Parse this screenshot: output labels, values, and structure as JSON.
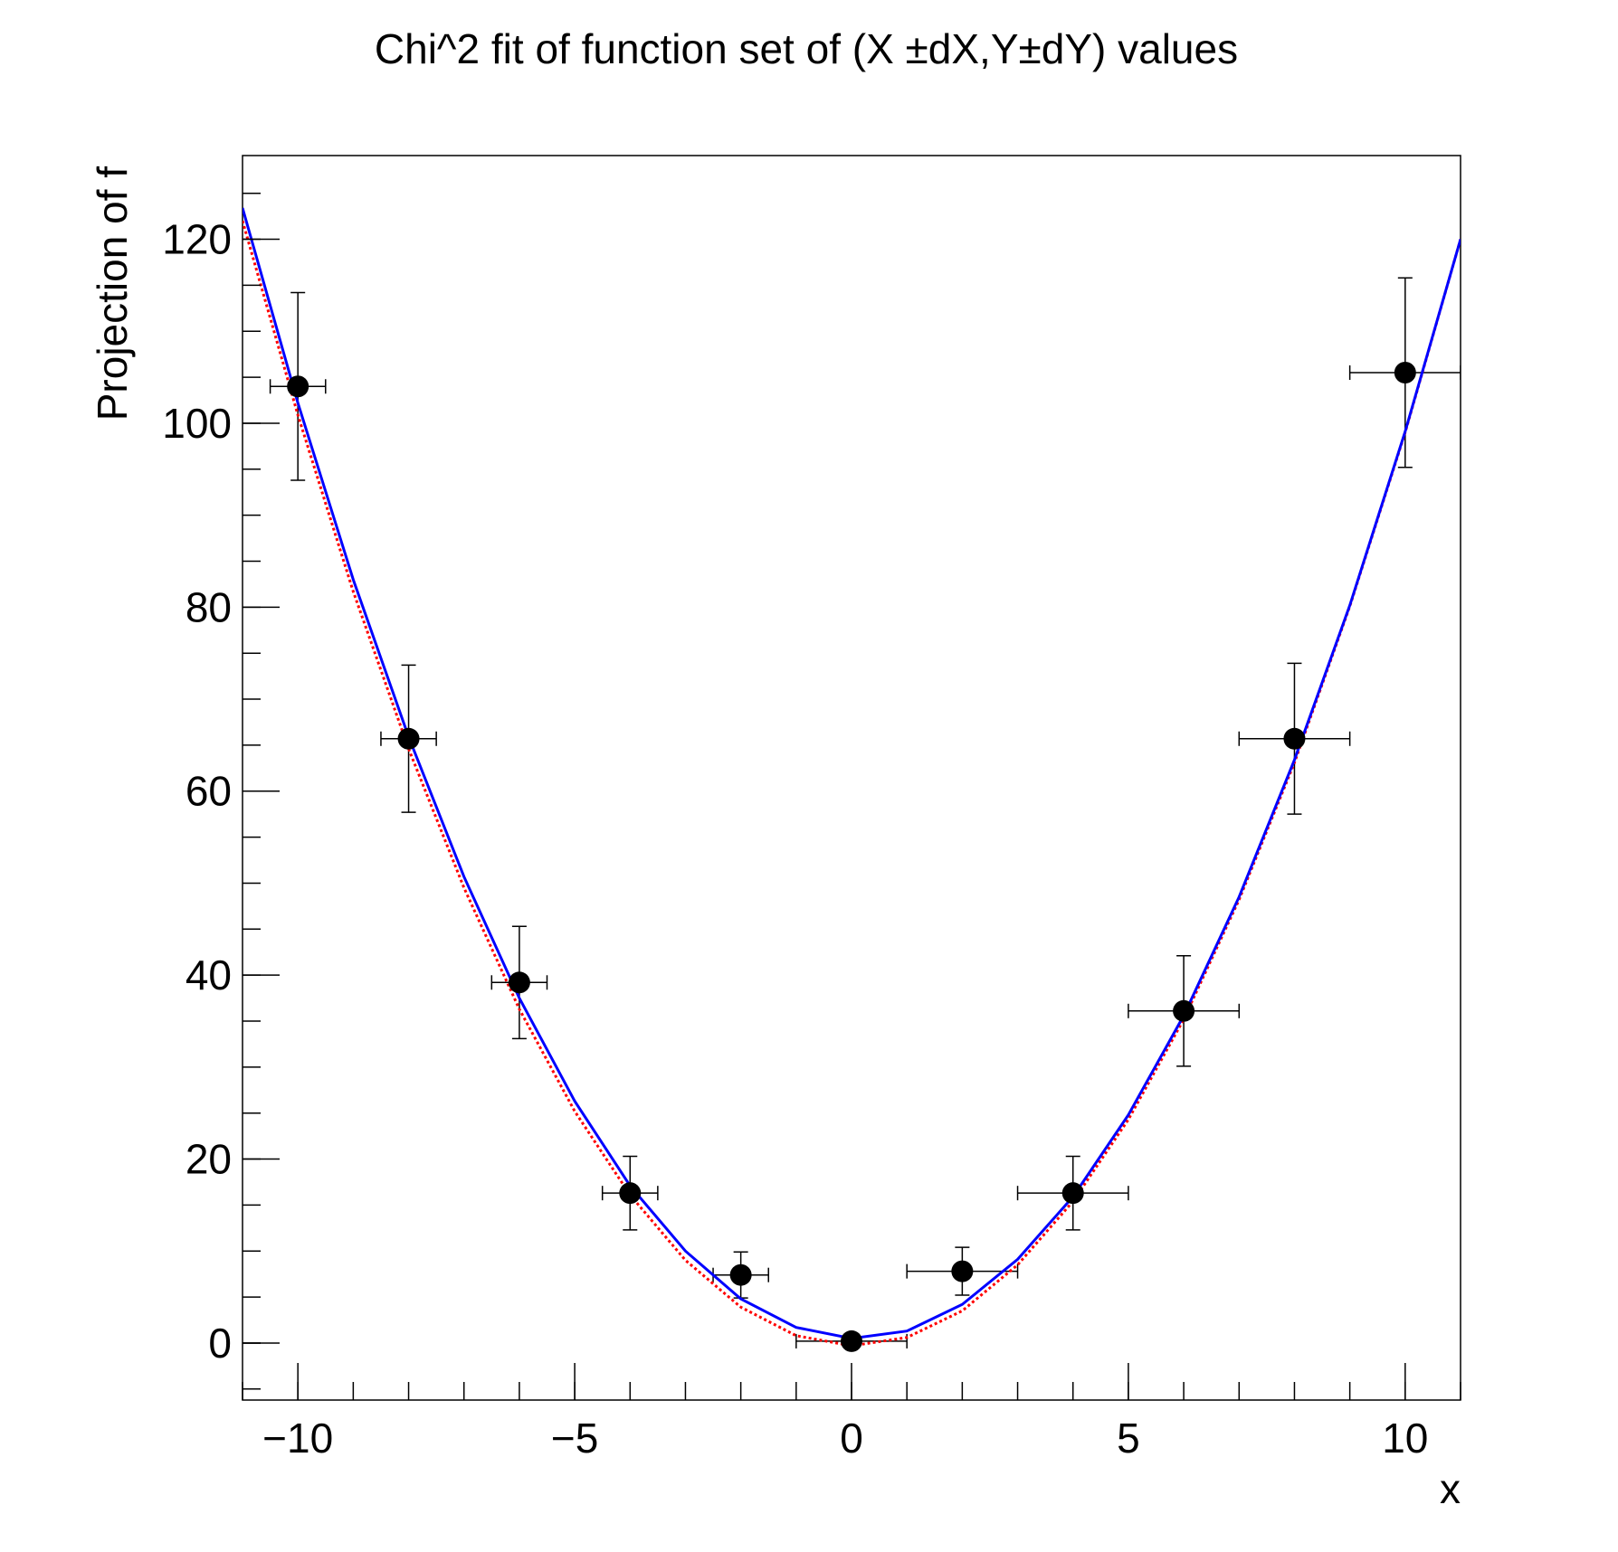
{
  "chart_data": {
    "type": "scatter",
    "title": "Chi^2 fit of function set of (X ±dX,Y±dY) values",
    "xlabel": "x",
    "ylabel": "Projection of f",
    "xlim": [
      -11,
      11
    ],
    "ylim": [
      -6.2,
      129.1
    ],
    "xticks": [
      {
        "value": -10,
        "label": "−10"
      },
      {
        "value": -5,
        "label": "−5"
      },
      0,
      5,
      10
    ],
    "yticks": [
      0,
      20,
      40,
      60,
      80,
      100,
      120
    ],
    "points": {
      "color": "#000000",
      "x": [
        -10,
        -8,
        -6,
        -4,
        -2,
        0,
        2,
        4,
        6,
        8,
        10
      ],
      "values": [
        104.0,
        65.7,
        39.2,
        16.3,
        7.4,
        0.2,
        7.8,
        16.3,
        36.1,
        65.7,
        105.5
      ],
      "xerr": [
        0.5,
        0.5,
        0.5,
        0.5,
        0.5,
        1,
        1,
        1,
        1,
        1,
        1
      ],
      "yerr": [
        10.2,
        8,
        6.1,
        4,
        2.5,
        0.5,
        2.6,
        4,
        6,
        8.2,
        10.3
      ]
    },
    "lines": [
      {
        "color": "#ff0000",
        "style": "dotted",
        "x": [
          -11,
          -10,
          -9,
          -8,
          -7,
          -6,
          -5,
          -4,
          -3,
          -2,
          -1,
          0,
          1,
          2,
          3,
          4,
          5,
          6,
          7,
          8,
          9,
          10,
          11
        ],
        "values": [
          122.0,
          100.9,
          81.7,
          64.6,
          49.5,
          36.3,
          25.2,
          16.1,
          9.0,
          3.9,
          0.8,
          -0.3,
          0.6,
          3.5,
          8.5,
          15.4,
          24.3,
          35.2,
          48.2,
          63.1,
          80.1,
          99.0,
          120.0
        ]
      },
      {
        "color": "#0000ff",
        "style": "solid",
        "x": [
          -11,
          -10,
          -9,
          -8,
          -7,
          -6,
          -5,
          -4,
          -3,
          -2,
          -1,
          0,
          1,
          2,
          3,
          4,
          5,
          6,
          7,
          8,
          9,
          10,
          11
        ],
        "values": [
          123.4,
          102.2,
          83.0,
          65.9,
          50.7,
          37.5,
          26.3,
          17.1,
          10.0,
          4.8,
          1.7,
          0.5,
          1.3,
          4.2,
          9.1,
          15.9,
          24.8,
          35.6,
          48.5,
          63.4,
          80.2,
          99.1,
          120.0
        ]
      }
    ]
  }
}
